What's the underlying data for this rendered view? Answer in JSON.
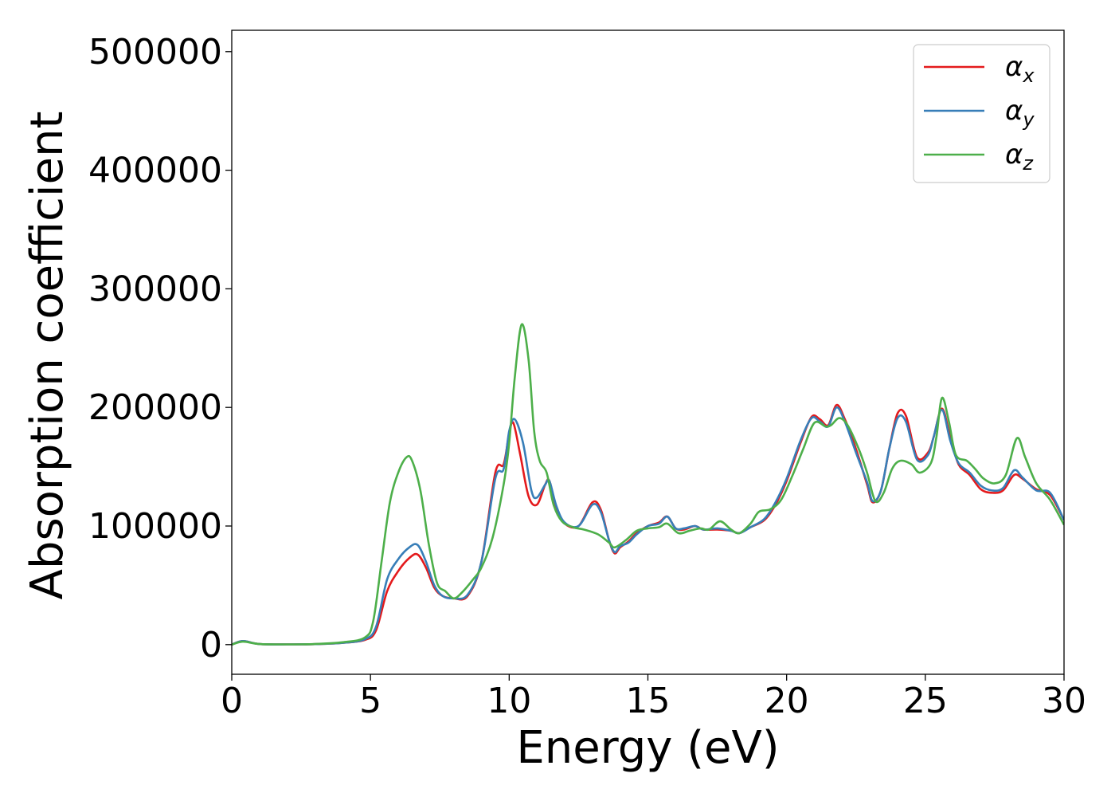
{
  "chart_data": {
    "type": "line",
    "title": "",
    "xlabel": "Energy (eV)",
    "ylabel": "Absorption coefficient",
    "xlim": [
      0,
      30
    ],
    "ylim": [
      -25000,
      518000
    ],
    "xticks": [
      0,
      5,
      10,
      15,
      20,
      25,
      30
    ],
    "yticks": [
      0,
      100000,
      200000,
      300000,
      400000,
      500000
    ],
    "grid": false,
    "legend_position": "top-right",
    "series": [
      {
        "name": "α_x",
        "label_main": "α",
        "label_sub": "x",
        "color": "#e41a1c",
        "points": [
          [
            0,
            0
          ],
          [
            0.4,
            3000
          ],
          [
            1,
            500
          ],
          [
            2,
            200
          ],
          [
            3,
            400
          ],
          [
            4,
            1500
          ],
          [
            4.8,
            4000
          ],
          [
            5.2,
            12000
          ],
          [
            5.6,
            45000
          ],
          [
            6.0,
            62000
          ],
          [
            6.4,
            73000
          ],
          [
            6.7,
            76000
          ],
          [
            7.0,
            65000
          ],
          [
            7.3,
            48000
          ],
          [
            7.6,
            41000
          ],
          [
            8.0,
            39000
          ],
          [
            8.5,
            41000
          ],
          [
            9.0,
            70000
          ],
          [
            9.5,
            145000
          ],
          [
            9.8,
            152000
          ],
          [
            10.0,
            178000
          ],
          [
            10.15,
            187000
          ],
          [
            10.4,
            160000
          ],
          [
            10.7,
            125000
          ],
          [
            11.0,
            118000
          ],
          [
            11.3,
            135000
          ],
          [
            11.45,
            138000
          ],
          [
            11.7,
            115000
          ],
          [
            12.0,
            102000
          ],
          [
            12.5,
            100000
          ],
          [
            13.0,
            120000
          ],
          [
            13.3,
            114000
          ],
          [
            13.6,
            88000
          ],
          [
            13.8,
            77000
          ],
          [
            14.0,
            82000
          ],
          [
            14.3,
            87000
          ],
          [
            14.6,
            94000
          ],
          [
            15.0,
            100000
          ],
          [
            15.4,
            103000
          ],
          [
            15.7,
            108000
          ],
          [
            16.0,
            98000
          ],
          [
            16.3,
            97000
          ],
          [
            16.7,
            100000
          ],
          [
            17.0,
            97000
          ],
          [
            17.5,
            97000
          ],
          [
            18.0,
            96000
          ],
          [
            18.3,
            94000
          ],
          [
            18.7,
            99000
          ],
          [
            19.2,
            105000
          ],
          [
            19.6,
            118000
          ],
          [
            20.0,
            138000
          ],
          [
            20.5,
            170000
          ],
          [
            20.9,
            192000
          ],
          [
            21.2,
            190000
          ],
          [
            21.5,
            185000
          ],
          [
            21.8,
            202000
          ],
          [
            22.1,
            190000
          ],
          [
            22.5,
            165000
          ],
          [
            22.9,
            135000
          ],
          [
            23.1,
            120000
          ],
          [
            23.4,
            130000
          ],
          [
            23.7,
            165000
          ],
          [
            24.0,
            195000
          ],
          [
            24.3,
            193000
          ],
          [
            24.7,
            158000
          ],
          [
            25.1,
            162000
          ],
          [
            25.3,
            175000
          ],
          [
            25.6,
            199000
          ],
          [
            25.9,
            175000
          ],
          [
            26.2,
            152000
          ],
          [
            26.6,
            143000
          ],
          [
            27.0,
            131000
          ],
          [
            27.4,
            128000
          ],
          [
            27.8,
            130000
          ],
          [
            28.2,
            143000
          ],
          [
            28.5,
            140000
          ],
          [
            29.0,
            131000
          ],
          [
            29.5,
            126000
          ],
          [
            30,
            105000
          ]
        ]
      },
      {
        "name": "α_y",
        "label_main": "α",
        "label_sub": "y",
        "color": "#377eb8",
        "points": [
          [
            0,
            0
          ],
          [
            0.4,
            3000
          ],
          [
            1,
            500
          ],
          [
            2,
            200
          ],
          [
            3,
            400
          ],
          [
            4,
            1500
          ],
          [
            4.8,
            4500
          ],
          [
            5.2,
            15000
          ],
          [
            5.6,
            55000
          ],
          [
            6.0,
            72000
          ],
          [
            6.4,
            82000
          ],
          [
            6.7,
            84000
          ],
          [
            7.0,
            70000
          ],
          [
            7.3,
            50000
          ],
          [
            7.6,
            41000
          ],
          [
            8.0,
            39000
          ],
          [
            8.5,
            42000
          ],
          [
            9.0,
            70000
          ],
          [
            9.5,
            140000
          ],
          [
            9.8,
            148000
          ],
          [
            10.0,
            180000
          ],
          [
            10.2,
            190000
          ],
          [
            10.5,
            170000
          ],
          [
            10.8,
            130000
          ],
          [
            11.0,
            124000
          ],
          [
            11.3,
            135000
          ],
          [
            11.45,
            138000
          ],
          [
            11.7,
            117000
          ],
          [
            12.0,
            103000
          ],
          [
            12.5,
            100000
          ],
          [
            13.0,
            118000
          ],
          [
            13.3,
            112000
          ],
          [
            13.6,
            88000
          ],
          [
            13.8,
            78000
          ],
          [
            14.0,
            83000
          ],
          [
            14.3,
            86000
          ],
          [
            14.6,
            93000
          ],
          [
            15.0,
            100000
          ],
          [
            15.4,
            102000
          ],
          [
            15.7,
            108000
          ],
          [
            16.0,
            98000
          ],
          [
            16.3,
            98000
          ],
          [
            16.7,
            100000
          ],
          [
            17.0,
            97000
          ],
          [
            17.5,
            98000
          ],
          [
            18.0,
            96000
          ],
          [
            18.3,
            94000
          ],
          [
            18.7,
            99000
          ],
          [
            19.2,
            106000
          ],
          [
            19.6,
            120000
          ],
          [
            20.0,
            140000
          ],
          [
            20.5,
            172000
          ],
          [
            20.9,
            191000
          ],
          [
            21.2,
            188000
          ],
          [
            21.5,
            184000
          ],
          [
            21.8,
            200000
          ],
          [
            22.1,
            188000
          ],
          [
            22.5,
            162000
          ],
          [
            22.9,
            137000
          ],
          [
            23.1,
            121000
          ],
          [
            23.4,
            130000
          ],
          [
            23.7,
            165000
          ],
          [
            24.0,
            191000
          ],
          [
            24.3,
            188000
          ],
          [
            24.7,
            156000
          ],
          [
            25.1,
            160000
          ],
          [
            25.3,
            175000
          ],
          [
            25.6,
            198000
          ],
          [
            25.9,
            172000
          ],
          [
            26.2,
            153000
          ],
          [
            26.6,
            145000
          ],
          [
            27.0,
            134000
          ],
          [
            27.4,
            130000
          ],
          [
            27.8,
            132000
          ],
          [
            28.2,
            147000
          ],
          [
            28.5,
            141000
          ],
          [
            29.0,
            130000
          ],
          [
            29.5,
            128000
          ],
          [
            30,
            105000
          ]
        ]
      },
      {
        "name": "α_z",
        "label_main": "α",
        "label_sub": "z",
        "color": "#4daf4a",
        "points": [
          [
            0,
            0
          ],
          [
            0.4,
            2500
          ],
          [
            1,
            500
          ],
          [
            2,
            200
          ],
          [
            3,
            500
          ],
          [
            4,
            2000
          ],
          [
            4.8,
            6000
          ],
          [
            5.1,
            20000
          ],
          [
            5.4,
            70000
          ],
          [
            5.7,
            120000
          ],
          [
            6.0,
            145000
          ],
          [
            6.3,
            158000
          ],
          [
            6.5,
            155000
          ],
          [
            6.8,
            130000
          ],
          [
            7.1,
            85000
          ],
          [
            7.4,
            52000
          ],
          [
            7.7,
            45000
          ],
          [
            8.0,
            39000
          ],
          [
            8.3,
            44000
          ],
          [
            8.7,
            55000
          ],
          [
            9.0,
            65000
          ],
          [
            9.4,
            90000
          ],
          [
            9.8,
            135000
          ],
          [
            10.0,
            170000
          ],
          [
            10.2,
            225000
          ],
          [
            10.45,
            270000
          ],
          [
            10.7,
            240000
          ],
          [
            10.9,
            180000
          ],
          [
            11.1,
            155000
          ],
          [
            11.35,
            145000
          ],
          [
            11.6,
            118000
          ],
          [
            11.9,
            104000
          ],
          [
            12.3,
            99000
          ],
          [
            12.7,
            97000
          ],
          [
            13.2,
            93000
          ],
          [
            13.6,
            86000
          ],
          [
            13.8,
            82000
          ],
          [
            14.2,
            88000
          ],
          [
            14.6,
            96000
          ],
          [
            15.0,
            98000
          ],
          [
            15.4,
            99000
          ],
          [
            15.7,
            102000
          ],
          [
            16.1,
            94000
          ],
          [
            16.5,
            96000
          ],
          [
            16.9,
            98000
          ],
          [
            17.2,
            97000
          ],
          [
            17.6,
            104000
          ],
          [
            18.0,
            97000
          ],
          [
            18.3,
            94000
          ],
          [
            18.7,
            102000
          ],
          [
            19.0,
            112000
          ],
          [
            19.4,
            114000
          ],
          [
            19.8,
            122000
          ],
          [
            20.2,
            142000
          ],
          [
            20.6,
            165000
          ],
          [
            21.0,
            187000
          ],
          [
            21.4,
            184000
          ],
          [
            21.6,
            185000
          ],
          [
            21.9,
            191000
          ],
          [
            22.2,
            185000
          ],
          [
            22.6,
            165000
          ],
          [
            22.9,
            145000
          ],
          [
            23.2,
            121000
          ],
          [
            23.5,
            128000
          ],
          [
            23.8,
            148000
          ],
          [
            24.1,
            155000
          ],
          [
            24.5,
            152000
          ],
          [
            24.8,
            145000
          ],
          [
            25.2,
            153000
          ],
          [
            25.4,
            175000
          ],
          [
            25.6,
            208000
          ],
          [
            25.85,
            188000
          ],
          [
            26.1,
            160000
          ],
          [
            26.5,
            155000
          ],
          [
            26.8,
            148000
          ],
          [
            27.1,
            140000
          ],
          [
            27.5,
            136000
          ],
          [
            27.9,
            143000
          ],
          [
            28.3,
            174000
          ],
          [
            28.6,
            158000
          ],
          [
            29.0,
            136000
          ],
          [
            29.5,
            122000
          ],
          [
            30,
            101000
          ]
        ]
      }
    ]
  }
}
